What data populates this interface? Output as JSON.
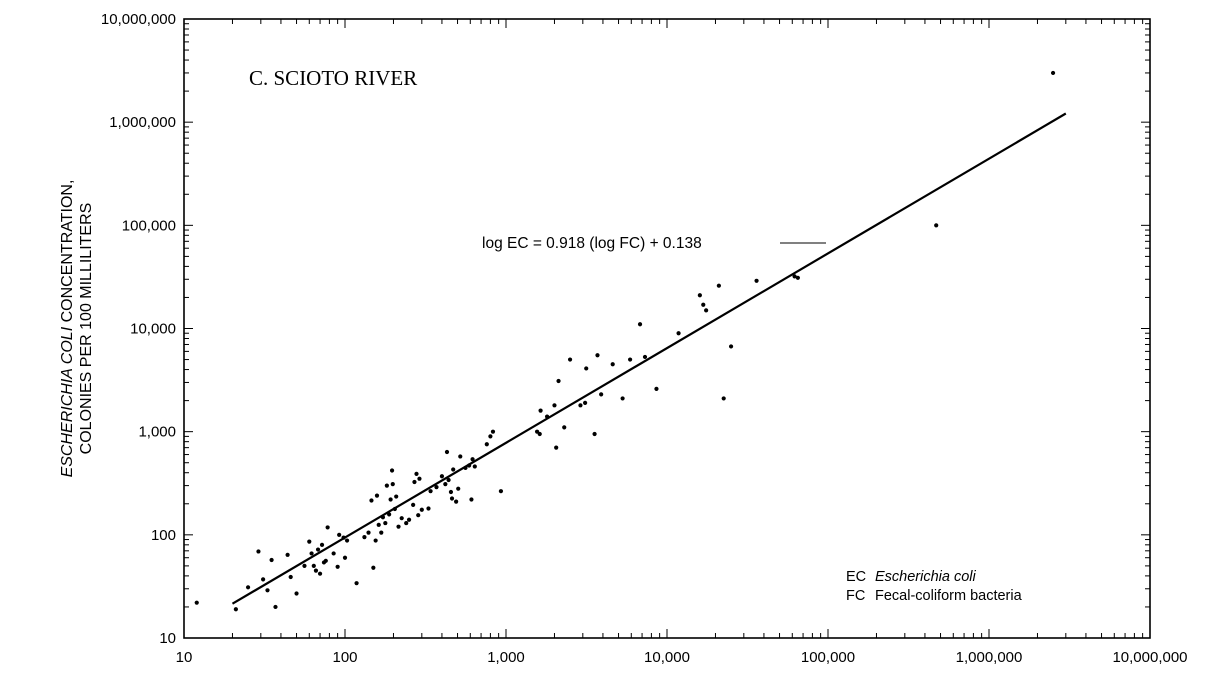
{
  "chart_data": {
    "type": "scatter",
    "title": "C.  SCIOTO RIVER",
    "xlabel": "",
    "ylabel_lines": [
      {
        "italic": "ESCHERICHIA COLI",
        "normal": " CONCENTRATION,"
      },
      {
        "italic": "",
        "normal": "COLONIES PER 100 MILLILITERS"
      }
    ],
    "x_scale": "log",
    "y_scale": "log",
    "xlim": [
      10,
      10000000
    ],
    "ylim": [
      10,
      10000000
    ],
    "x_ticks": [
      {
        "value": 10,
        "label": "10"
      },
      {
        "value": 100,
        "label": "100"
      },
      {
        "value": 1000,
        "label": "1,000"
      },
      {
        "value": 10000,
        "label": "10,000"
      },
      {
        "value": 100000,
        "label": "100,000"
      },
      {
        "value": 1000000,
        "label": "1,000,000"
      },
      {
        "value": 10000000,
        "label": "10,000,000"
      }
    ],
    "y_ticks": [
      {
        "value": 10,
        "label": "10"
      },
      {
        "value": 100,
        "label": "100"
      },
      {
        "value": 1000,
        "label": "1,000"
      },
      {
        "value": 10000,
        "label": "10,000"
      },
      {
        "value": 100000,
        "label": "100,000"
      },
      {
        "value": 1000000,
        "label": "1,000,000"
      },
      {
        "value": 10000000,
        "label": "10,000,000"
      }
    ],
    "grid": false,
    "regression": {
      "equation": "log EC = 0.918 (log FC) + 0.138",
      "slope": 0.918,
      "intercept": 0.138,
      "x_range": [
        20,
        3000000
      ]
    },
    "legend": {
      "position": "bottom-right",
      "entries": [
        {
          "code": "EC",
          "name": "Escherichia coli",
          "italic": true
        },
        {
          "code": "FC",
          "name": "Fecal-coliform bacteria",
          "italic": false
        }
      ]
    },
    "points": [
      [
        12,
        22
      ],
      [
        21,
        19
      ],
      [
        25,
        31
      ],
      [
        29,
        69
      ],
      [
        31,
        37
      ],
      [
        33,
        29
      ],
      [
        35,
        57
      ],
      [
        37,
        20
      ],
      [
        44,
        64
      ],
      [
        46,
        39
      ],
      [
        50,
        27
      ],
      [
        56,
        50
      ],
      [
        60,
        86
      ],
      [
        62,
        66
      ],
      [
        64,
        50
      ],
      [
        66,
        45
      ],
      [
        68,
        72
      ],
      [
        70,
        42
      ],
      [
        72,
        80
      ],
      [
        74,
        54
      ],
      [
        76,
        56
      ],
      [
        78,
        118
      ],
      [
        85,
        66
      ],
      [
        90,
        49
      ],
      [
        92,
        100
      ],
      [
        98,
        94
      ],
      [
        100,
        60
      ],
      [
        103,
        88
      ],
      [
        118,
        34
      ],
      [
        132,
        95
      ],
      [
        140,
        105
      ],
      [
        146,
        215
      ],
      [
        150,
        48
      ],
      [
        155,
        88
      ],
      [
        158,
        240
      ],
      [
        162,
        125
      ],
      [
        168,
        105
      ],
      [
        172,
        148
      ],
      [
        178,
        130
      ],
      [
        182,
        300
      ],
      [
        188,
        158
      ],
      [
        192,
        220
      ],
      [
        196,
        420
      ],
      [
        198,
        310
      ],
      [
        204,
        178
      ],
      [
        208,
        235
      ],
      [
        215,
        120
      ],
      [
        225,
        145
      ],
      [
        240,
        130
      ],
      [
        250,
        140
      ],
      [
        265,
        195
      ],
      [
        270,
        325
      ],
      [
        278,
        390
      ],
      [
        285,
        155
      ],
      [
        290,
        350
      ],
      [
        300,
        175
      ],
      [
        330,
        180
      ],
      [
        340,
        265
      ],
      [
        370,
        290
      ],
      [
        400,
        370
      ],
      [
        420,
        310
      ],
      [
        430,
        635
      ],
      [
        440,
        340
      ],
      [
        455,
        260
      ],
      [
        462,
        225
      ],
      [
        470,
        430
      ],
      [
        490,
        210
      ],
      [
        505,
        280
      ],
      [
        520,
        575
      ],
      [
        560,
        445
      ],
      [
        590,
        470
      ],
      [
        610,
        220
      ],
      [
        620,
        540
      ],
      [
        640,
        460
      ],
      [
        760,
        755
      ],
      [
        800,
        900
      ],
      [
        830,
        1000
      ],
      [
        930,
        265
      ],
      [
        1560,
        1000
      ],
      [
        1620,
        950
      ],
      [
        1640,
        1600
      ],
      [
        1800,
        1400
      ],
      [
        2000,
        1800
      ],
      [
        2050,
        700
      ],
      [
        2120,
        3100
      ],
      [
        2300,
        1100
      ],
      [
        2500,
        5000
      ],
      [
        2900,
        1800
      ],
      [
        3100,
        1900
      ],
      [
        3150,
        4100
      ],
      [
        3550,
        950
      ],
      [
        3700,
        5500
      ],
      [
        3900,
        2300
      ],
      [
        4600,
        4500
      ],
      [
        5300,
        2100
      ],
      [
        5900,
        5000
      ],
      [
        6800,
        11000
      ],
      [
        7300,
        5300
      ],
      [
        8600,
        2600
      ],
      [
        11800,
        9000
      ],
      [
        16000,
        21000
      ],
      [
        16800,
        17000
      ],
      [
        17500,
        15000
      ],
      [
        21000,
        26000
      ],
      [
        22500,
        2100
      ],
      [
        25000,
        6700
      ],
      [
        36000,
        29000
      ],
      [
        62000,
        32000
      ],
      [
        65000,
        31000
      ],
      [
        470000,
        100000
      ],
      [
        2500000,
        3000000
      ]
    ]
  }
}
